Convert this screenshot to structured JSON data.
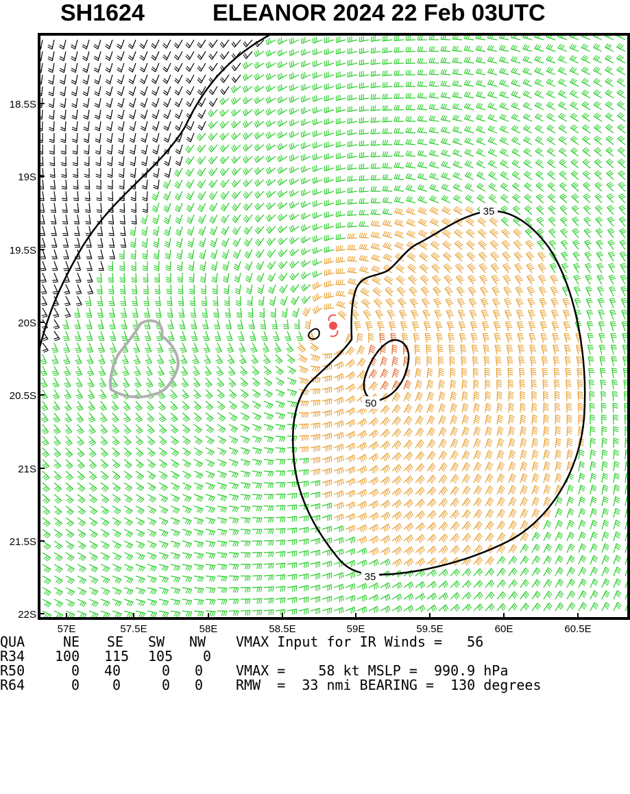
{
  "title": {
    "storm_id": "SH1624",
    "name_date": "ELEANOR 2024 22 Feb 03UTC"
  },
  "axes": {
    "lon_labels": [
      "57E",
      "57.5E",
      "58E",
      "58.5E",
      "59E",
      "59.5E",
      "60E",
      "60.5E"
    ],
    "lat_labels": [
      "18.5S",
      "19S",
      "19.5S",
      "20S",
      "20.5S",
      "21S",
      "21.5S",
      "22S"
    ]
  },
  "contours": {
    "outer_label": "35",
    "outer_label_2": "35",
    "inner_label": "50"
  },
  "colors": {
    "calm_wind": "#000000",
    "gale_wind": "#22cc22",
    "storm_wind": "#e8a030",
    "hurricane_wind": "#e06a2a",
    "storm_center": "#f05050",
    "island": "#b0b0b0"
  },
  "icons": {
    "storm_center": "tropical-cyclone-icon"
  },
  "stats": {
    "header": [
      "QUA",
      "NE",
      "SE",
      "SW",
      "NW"
    ],
    "r34": [
      "R34",
      "100",
      "115",
      "105",
      "0"
    ],
    "r50": [
      "R50",
      "0",
      "40",
      "0",
      "0"
    ],
    "r64": [
      "R64",
      "0",
      "0",
      "0",
      "0"
    ],
    "vmax_input": "VMAX Input for IR Winds =   56",
    "vmax_mslp": "VMAX =    58 kt MSLP =  990.9 hPa",
    "rmw_bearing": "RMW  =  33 nmi BEARING =  130 degrees"
  }
}
